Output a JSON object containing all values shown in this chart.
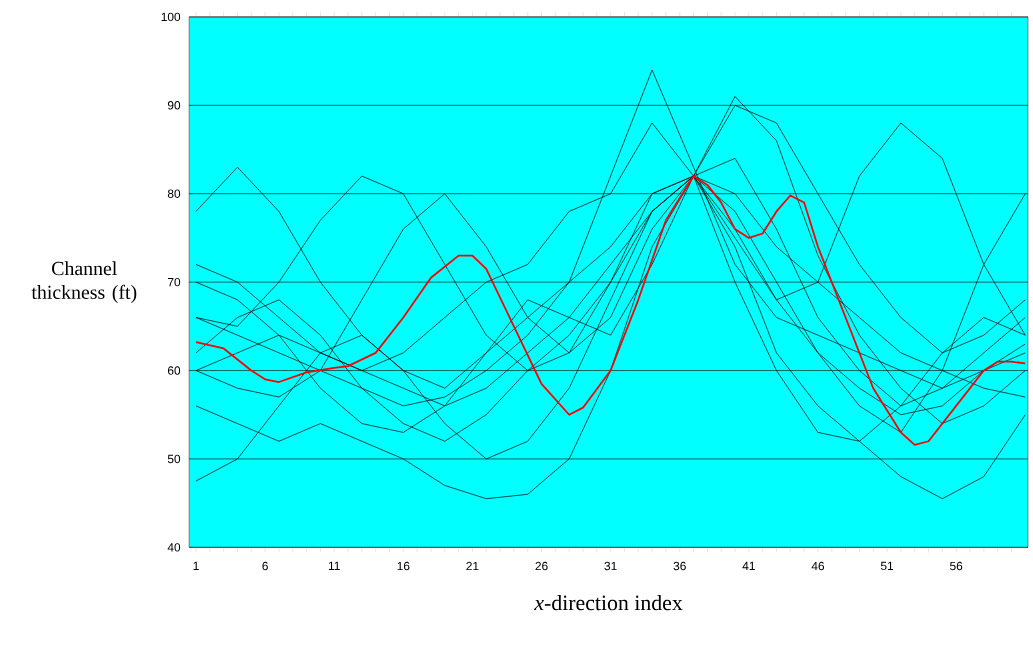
{
  "chart_data": {
    "type": "line",
    "xlabel": "*x*-direction index",
    "ylabel": "Channel thickness (ft)",
    "xlim": [
      0.5,
      61.2
    ],
    "ylim": [
      40,
      100
    ],
    "yticks": [
      40,
      50,
      60,
      70,
      80,
      90,
      100
    ],
    "grid": "y",
    "xticks": [
      1,
      {
        "value": 2,
        "label": null
      },
      {
        "value": 3,
        "label": null
      },
      {
        "value": 4,
        "label": null
      },
      {
        "value": 5,
        "label": null
      },
      6,
      {
        "value": 7,
        "label": null
      },
      {
        "value": 8,
        "label": null
      },
      {
        "value": 9,
        "label": null
      },
      {
        "value": 10,
        "label": null
      },
      11,
      {
        "value": 12,
        "label": null
      },
      {
        "value": 13,
        "label": null
      },
      {
        "value": 14,
        "label": null
      },
      {
        "value": 15,
        "label": null
      },
      16,
      {
        "value": 17,
        "label": null
      },
      {
        "value": 18,
        "label": null
      },
      {
        "value": 19,
        "label": null
      },
      {
        "value": 20,
        "label": null
      },
      21,
      {
        "value": 22,
        "label": null
      },
      {
        "value": 23,
        "label": null
      },
      {
        "value": 24,
        "label": null
      },
      {
        "value": 25,
        "label": null
      },
      26,
      {
        "value": 27,
        "label": null
      },
      {
        "value": 28,
        "label": null
      },
      {
        "value": 29,
        "label": null
      },
      {
        "value": 30,
        "label": null
      },
      31,
      {
        "value": 32,
        "label": null
      },
      {
        "value": 33,
        "label": null
      },
      {
        "value": 34,
        "label": null
      },
      {
        "value": 35,
        "label": null
      },
      36,
      {
        "value": 37,
        "label": null
      },
      {
        "value": 38,
        "label": null
      },
      {
        "value": 39,
        "label": null
      },
      {
        "value": 40,
        "label": null
      },
      41,
      {
        "value": 42,
        "label": null
      },
      {
        "value": 43,
        "label": null
      },
      {
        "value": 44,
        "label": null
      },
      {
        "value": 45,
        "label": null
      },
      46,
      {
        "value": 47,
        "label": null
      },
      {
        "value": 48,
        "label": null
      },
      {
        "value": 49,
        "label": null
      },
      {
        "value": 50,
        "label": null
      },
      51,
      {
        "value": 52,
        "label": null
      },
      {
        "value": 53,
        "label": null
      },
      {
        "value": 54,
        "label": null
      },
      {
        "value": 55,
        "label": null
      },
      56,
      {
        "value": 57,
        "label": null
      },
      {
        "value": 58,
        "label": null
      },
      {
        "value": 59,
        "label": null
      },
      {
        "value": 60,
        "label": null
      }
    ],
    "x": [
      1,
      4,
      7,
      10,
      13,
      16,
      19,
      22,
      25,
      28,
      31,
      34,
      37,
      40,
      43,
      46,
      49,
      52,
      55,
      58,
      61
    ],
    "series": [
      {
        "color": "#000000",
        "values": [
          66,
          64,
          62,
          60,
          58,
          56,
          57,
          60,
          64,
          70,
          82,
          94,
          83,
          72,
          66,
          64,
          62,
          60,
          58,
          60,
          62
        ]
      },
      {
        "color": "#000000",
        "values": [
          60,
          62,
          64,
          62,
          60,
          58,
          56,
          58,
          62,
          66,
          72,
          78,
          82,
          75,
          68,
          70,
          82,
          88,
          84,
          72,
          64
        ]
      },
      {
        "color": "#000000",
        "values": [
          56,
          54,
          52,
          54,
          52,
          50,
          47,
          45.5,
          46,
          50,
          60,
          74,
          82,
          78,
          70,
          62,
          58,
          55,
          56,
          60,
          63
        ]
      },
      {
        "color": "#000000",
        "values": [
          78,
          83,
          78,
          70,
          64,
          60,
          58,
          62,
          66,
          70,
          74,
          80,
          82,
          74,
          62,
          56,
          52,
          48,
          45.5,
          48,
          55
        ]
      },
      {
        "color": "#000000",
        "values": [
          66,
          65,
          70,
          77,
          82,
          80,
          72,
          64,
          60,
          62,
          70,
          78,
          82,
          90,
          88,
          80,
          72,
          66,
          62,
          64,
          68
        ]
      },
      {
        "color": "#000000",
        "values": [
          47.5,
          50,
          56,
          62,
          64,
          60,
          54,
          50,
          52,
          58,
          68,
          78,
          82,
          84,
          76,
          66,
          60,
          56,
          58,
          62,
          66
        ]
      },
      {
        "color": "#000000",
        "values": [
          60,
          58,
          57,
          60,
          68,
          76,
          80,
          74,
          66,
          62,
          66,
          76,
          82,
          80,
          74,
          70,
          66,
          62,
          60,
          58,
          57
        ]
      },
      {
        "color": "#000000",
        "values": [
          62,
          66,
          68,
          64,
          58,
          54,
          52,
          55,
          60,
          64,
          70,
          80,
          82,
          76,
          68,
          62,
          56,
          53,
          60,
          72,
          80
        ]
      },
      {
        "color": "#000000",
        "values": [
          70,
          68,
          64,
          58,
          54,
          53,
          56,
          62,
          68,
          66,
          64,
          72,
          82,
          91,
          86,
          73,
          64,
          58,
          54,
          56,
          60
        ]
      },
      {
        "color": "#000000",
        "values": [
          72,
          70,
          66,
          62,
          60,
          62,
          66,
          70,
          72,
          78,
          80,
          88,
          82,
          70,
          60,
          53,
          52,
          56,
          62,
          66,
          64
        ]
      },
      {
        "color": "#ff0000",
        "x": [
          1,
          3,
          5,
          6,
          7,
          9,
          11,
          12,
          14,
          16,
          18,
          20,
          21,
          22,
          24,
          26,
          28,
          29,
          31,
          33,
          35,
          37,
          38,
          39,
          40,
          41,
          42,
          43,
          44,
          45,
          46,
          48,
          50,
          52,
          53,
          54,
          56,
          58,
          59,
          60,
          61
        ],
        "values": [
          63.2,
          62.5,
          60,
          59,
          58.7,
          59.8,
          60.3,
          60.5,
          62,
          66,
          70.5,
          73,
          73,
          71.5,
          65,
          58.5,
          55,
          55.8,
          60,
          68,
          77,
          82,
          81,
          79,
          76,
          75,
          75.5,
          78,
          79.8,
          79,
          74,
          66,
          58,
          53,
          51.6,
          52,
          56,
          60,
          61,
          61,
          60.8
        ]
      }
    ]
  }
}
